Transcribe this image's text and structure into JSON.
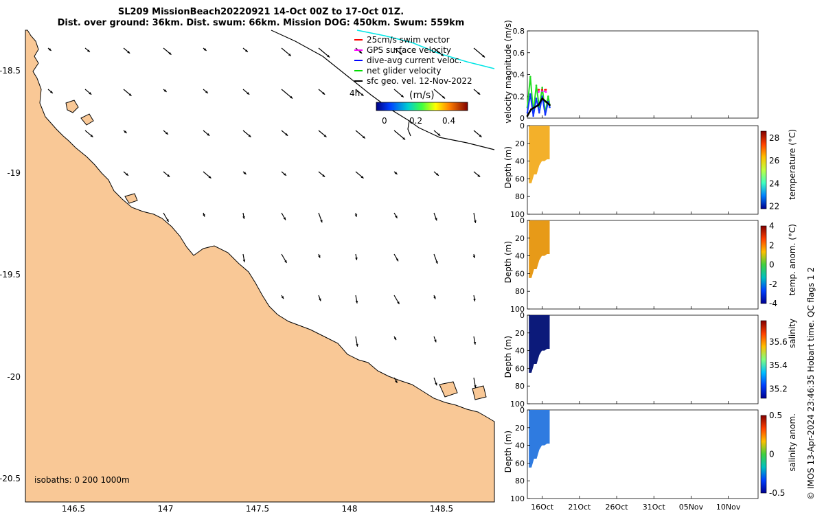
{
  "title": {
    "line1": "SL209 MissionBeach20220921 14-Oct 00Z to 17-Oct 01Z.",
    "line2": "Dist. over ground: 36km. Dist. swum: 66km. Mission DOG: 450km. Swum: 559km"
  },
  "map": {
    "lon_ticks": [
      "146.5",
      "147",
      "147.5",
      "148",
      "148.5"
    ],
    "lat_ticks": [
      "-18.5",
      "-19",
      "-19.5",
      "-20",
      "-20.5"
    ],
    "legend": [
      {
        "label": "25cm/s swim vector",
        "color": "#ff0000"
      },
      {
        "label": "GPS surface velocity",
        "color": "#ff00ff"
      },
      {
        "label": "dive-avg current veloc.",
        "color": "#0000ff"
      },
      {
        "label": "net glider velocity",
        "color": "#00dd00"
      },
      {
        "label": "sfc geo. vel. 12-Nov-2022",
        "color": "#000000"
      }
    ],
    "colorbar_unit": "(m/s)",
    "colorbar_ticks": [
      "0",
      "0.2",
      "0.4"
    ],
    "time_label": "4h",
    "isobaths": "isobaths: 0   200  1000m",
    "colors": {
      "land": "#f9c896",
      "sea": "#ffffff",
      "track": "#00e5e5"
    }
  },
  "chart_data": [
    {
      "type": "line",
      "title": "",
      "xlabel": "",
      "ylabel": "velocity magnitude (m/s)",
      "ylim": [
        0,
        0.8
      ],
      "yticks": [
        "0",
        "0.2",
        "0.4",
        "0.6",
        "0.8"
      ],
      "series": [
        {
          "name": "net glider velocity",
          "color": "#22dd22",
          "x_days": [
            0,
            0.4,
            0.8,
            1.2,
            1.6,
            2.0,
            2.4,
            2.8,
            3.0
          ],
          "values": [
            0.1,
            0.38,
            0.05,
            0.3,
            0.1,
            0.28,
            0.05,
            0.2,
            0.12
          ]
        },
        {
          "name": "dive-avg current veloc.",
          "color": "#1133ff",
          "x_days": [
            0,
            0.4,
            0.8,
            1.2,
            1.6,
            2.0,
            2.4,
            2.8,
            3.0
          ],
          "values": [
            0.05,
            0.22,
            0.02,
            0.18,
            0.05,
            0.2,
            0.03,
            0.15,
            0.1
          ]
        },
        {
          "name": "GPS surface velocity",
          "color": "#ff00ff",
          "x_days": [
            1.5,
            2.0,
            2.5
          ],
          "values": [
            0.24,
            0.25,
            0.24
          ]
        },
        {
          "name": "25cm/s swim vector",
          "color": "#ff0000",
          "x_days": [
            1.5,
            2.0,
            2.5
          ],
          "values": [
            0.26,
            0.26,
            0.26
          ]
        },
        {
          "name": "sfc geo. vel. 12-Nov-2022",
          "color": "#000000",
          "x_days": [
            0,
            0.5,
            1.0,
            1.5,
            2.0,
            2.5,
            3.0
          ],
          "values": [
            0.02,
            0.08,
            0.1,
            0.12,
            0.18,
            0.15,
            0.12
          ]
        }
      ]
    },
    {
      "type": "heatmap",
      "ylabel": "Depth (m)",
      "colorbar_label": "temperature (°C)",
      "ylim": [
        0,
        100
      ],
      "yticks": [
        "0",
        "20",
        "40",
        "60",
        "80",
        "100"
      ],
      "colorbar_ticks": [
        "28",
        "26",
        "24",
        "22"
      ],
      "colorbar_range": [
        21.8,
        28.6
      ],
      "fill_color": "#f3b02a",
      "profile_bottom_m": [
        65,
        65,
        55,
        55,
        45,
        40,
        40,
        38,
        38
      ]
    },
    {
      "type": "heatmap",
      "ylabel": "Depth (m)",
      "colorbar_label": "temp. anom. (°C)",
      "ylim": [
        0,
        100
      ],
      "yticks": [
        "0",
        "20",
        "40",
        "60",
        "80",
        "100"
      ],
      "colorbar_ticks": [
        "4",
        "2",
        "0",
        "-2",
        "-4"
      ],
      "colorbar_range": [
        -4,
        4
      ],
      "fill_color": "#e79a18",
      "profile_bottom_m": [
        65,
        65,
        55,
        55,
        45,
        40,
        40,
        38,
        38
      ]
    },
    {
      "type": "heatmap",
      "ylabel": "Depth (m)",
      "colorbar_label": "salinity",
      "ylim": [
        0,
        100
      ],
      "yticks": [
        "0",
        "20",
        "40",
        "60",
        "80",
        "100"
      ],
      "colorbar_ticks": [
        "35.6",
        "35.4",
        "35.2"
      ],
      "colorbar_range": [
        35.12,
        35.78
      ],
      "fill_color": "#0c1a7a",
      "profile_bottom_m": [
        65,
        65,
        55,
        55,
        45,
        40,
        40,
        38,
        38
      ]
    },
    {
      "type": "heatmap",
      "ylabel": "Depth (m)",
      "colorbar_label": "salinity anom.",
      "ylim": [
        0,
        100
      ],
      "yticks": [
        "0",
        "20",
        "40",
        "60",
        "80",
        "100"
      ],
      "colorbar_ticks": [
        "0.5",
        "0",
        "-0.5"
      ],
      "colorbar_range": [
        -0.5,
        0.5
      ],
      "fill_color": "#2f7be0",
      "profile_bottom_m": [
        65,
        65,
        55,
        55,
        45,
        40,
        40,
        38,
        38
      ]
    }
  ],
  "time_axis": {
    "ticks": [
      "16Oct",
      "21Oct",
      "26Oct",
      "31Oct",
      "05Nov",
      "10Nov"
    ],
    "tick_days": [
      2,
      7,
      12,
      17,
      22,
      27
    ],
    "range_days": [
      0,
      31
    ]
  },
  "footnote": "© IMOS 13-Apr-2024 23:46:35 Hobart time. QC flags 1  2"
}
